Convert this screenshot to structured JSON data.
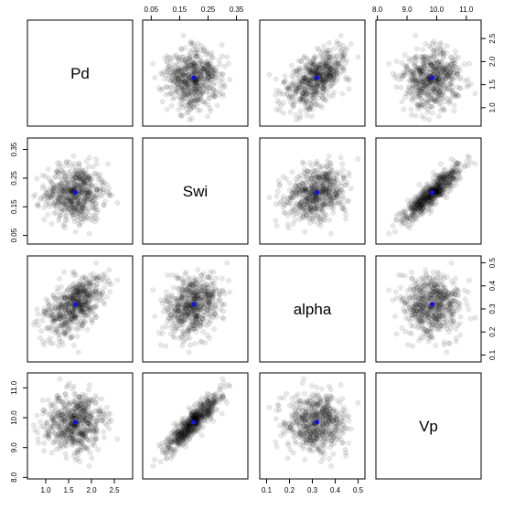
{
  "chart_data": {
    "type": "scatter-matrix",
    "variables": [
      {
        "name": "Pd",
        "range": [
          0.6,
          2.9
        ],
        "ticks": [
          "1.0",
          "1.5",
          "2.0",
          "2.5"
        ],
        "tick_values": [
          1.0,
          1.5,
          2.0,
          2.5
        ],
        "center": 1.65,
        "sd": 0.33
      },
      {
        "name": "Swi",
        "range": [
          0.02,
          0.39
        ],
        "ticks": [
          "0.05",
          "0.15",
          "0.25",
          "0.35"
        ],
        "tick_values": [
          0.05,
          0.15,
          0.25,
          0.35
        ],
        "center": 0.2,
        "sd": 0.05
      },
      {
        "name": "alpha",
        "range": [
          0.07,
          0.53
        ],
        "ticks": [
          "0.1",
          "0.2",
          "0.3",
          "0.4",
          "0.5"
        ],
        "tick_values": [
          0.1,
          0.2,
          0.3,
          0.4,
          0.5
        ],
        "center": 0.32,
        "sd": 0.065
      },
      {
        "name": "Vp",
        "range": [
          7.95,
          11.5
        ],
        "ticks": [
          "8.0",
          "9.0",
          "10.0",
          "11.0"
        ],
        "tick_values": [
          8.0,
          9.0,
          10.0,
          11.0
        ],
        "center": 9.85,
        "sd": 0.5
      }
    ],
    "correlations": [
      [
        1.0,
        0.0,
        0.55,
        0.0
      ],
      [
        0.0,
        1.0,
        0.25,
        0.9
      ],
      [
        0.55,
        0.25,
        1.0,
        0.0
      ],
      [
        0.0,
        0.9,
        0.0,
        1.0
      ]
    ],
    "n_points": 600,
    "point_color": "#000000",
    "center_color": "#1010e0",
    "axes": {
      "top": [
        1,
        3
      ],
      "bottom": [
        0,
        2
      ],
      "left": [
        1,
        3
      ],
      "right": [
        0,
        2
      ]
    }
  }
}
